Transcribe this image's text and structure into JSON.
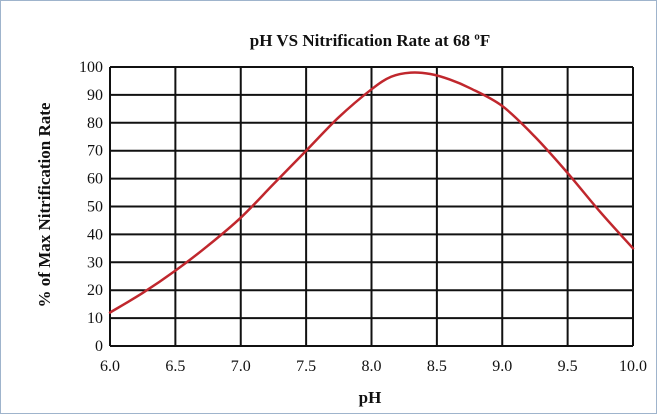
{
  "chart_data": {
    "type": "line",
    "title": "pH VS Nitrification Rate at 68 ºF",
    "xlabel": "pH",
    "ylabel": "% of Max Nitrification Rate",
    "xlim": [
      6.0,
      10.0
    ],
    "ylim": [
      0,
      100
    ],
    "x_ticks": [
      "6.0",
      "6.5",
      "7.0",
      "7.5",
      "8.0",
      "8.5",
      "9.0",
      "9.5",
      "10.0"
    ],
    "y_ticks": [
      "0",
      "10",
      "20",
      "30",
      "40",
      "50",
      "60",
      "70",
      "80",
      "90",
      "100"
    ],
    "grid": true,
    "series": [
      {
        "color": "#c0272d",
        "x": [
          6.0,
          6.25,
          6.5,
          6.75,
          7.0,
          7.25,
          7.5,
          7.75,
          8.0,
          8.15,
          8.3,
          8.45,
          8.6,
          8.75,
          9.0,
          9.25,
          9.5,
          9.75,
          10.0
        ],
        "y": [
          12,
          19,
          27,
          36,
          46,
          58,
          70,
          82,
          92,
          96.5,
          98,
          97.5,
          95.5,
          92.5,
          86,
          75,
          62,
          48,
          35
        ]
      }
    ]
  },
  "colors": {
    "frame_border": "#9fb4cc",
    "grid": "#111111",
    "line": "#c0272d"
  }
}
